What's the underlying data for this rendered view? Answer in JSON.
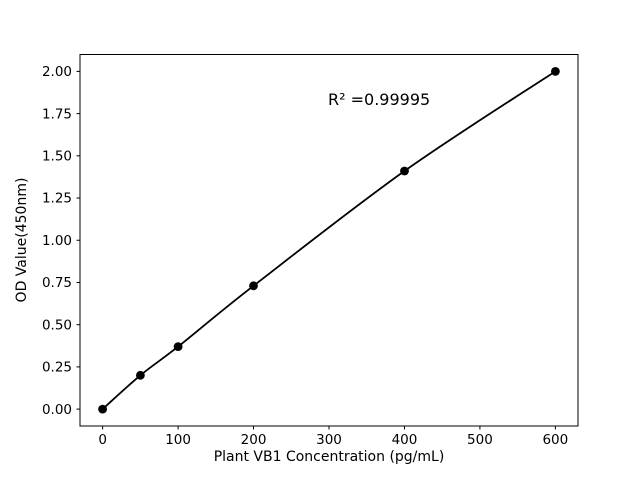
{
  "figure": {
    "background": "#ffffff",
    "text_color": "#000000"
  },
  "chart_data": {
    "type": "line",
    "x": [
      0,
      50,
      100,
      200,
      400,
      600
    ],
    "y": [
      0.0,
      0.2,
      0.37,
      0.73,
      1.41,
      2.0
    ],
    "title": "",
    "xlabel": "Plant VB1 Concentration (pg/mL)",
    "ylabel": "OD Value(450nm)",
    "annotation": "R² =0.99995",
    "xticks": [
      0,
      100,
      200,
      300,
      400,
      500,
      600
    ],
    "xtick_labels": [
      "0",
      "100",
      "200",
      "300",
      "400",
      "500",
      "600"
    ],
    "ytick_values": [
      0.0,
      0.25,
      0.5,
      0.75,
      1.0,
      1.25,
      1.5,
      1.75,
      2.0
    ],
    "ytick_labels": [
      "0.00",
      "0.25",
      "0.50",
      "0.75",
      "1.00",
      "1.25",
      "1.50",
      "1.75",
      "2.00"
    ],
    "xlim": [
      -30,
      630
    ],
    "ylim": [
      -0.1,
      2.1
    ],
    "grid": false,
    "legend": "none",
    "line_color": "#000000",
    "marker": "filled-circle",
    "marker_color": "#000000",
    "axis_color": "#000000"
  }
}
